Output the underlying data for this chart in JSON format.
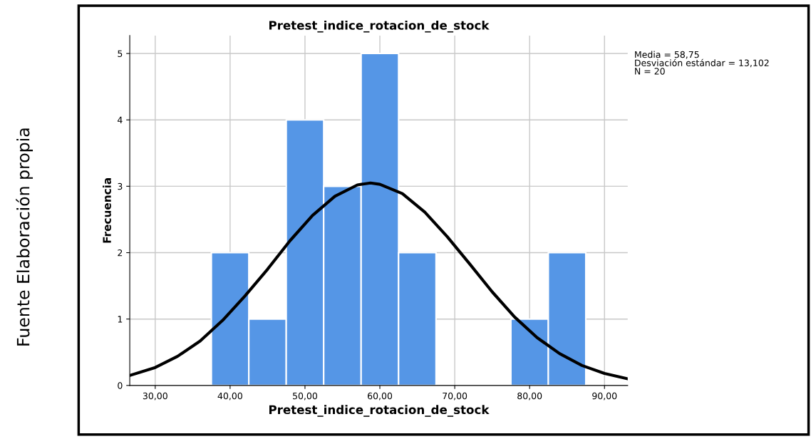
{
  "chart_data": {
    "type": "histogram",
    "title": "Pretest_indice_rotacion_de_stock",
    "xlabel": "Pretest_indice_rotacion_de_stock",
    "ylabel": "Frecuencia",
    "bins": [
      37.5,
      42.5,
      47.5,
      52.5,
      57.5,
      62.5,
      67.5,
      72.5,
      77.5,
      82.5,
      87.5
    ],
    "values": [
      2,
      1,
      4,
      3,
      5,
      2,
      0,
      0,
      1,
      2
    ],
    "color": "#5596e6",
    "series": [
      {
        "type": "line",
        "color": "#000000",
        "x": [
          26.6,
          30,
          33,
          36,
          39,
          42,
          45,
          48,
          51,
          54,
          57,
          58.75,
          60,
          63,
          66,
          69,
          72,
          75,
          78,
          81,
          84,
          87,
          90,
          93.1
        ],
        "values": [
          0.15,
          0.27,
          0.44,
          0.67,
          0.98,
          1.35,
          1.75,
          2.18,
          2.56,
          2.85,
          3.02,
          3.05,
          3.03,
          2.89,
          2.61,
          2.24,
          1.83,
          1.41,
          1.03,
          0.72,
          0.48,
          0.3,
          0.18,
          0.1
        ]
      }
    ],
    "xlim": [
      26.6,
      93.1
    ],
    "xticks": [
      {
        "value": 30,
        "label": "30,00"
      },
      {
        "value": 40,
        "label": "40,00"
      },
      {
        "value": 50,
        "label": "50,00"
      },
      {
        "value": 60,
        "label": "60,00"
      },
      {
        "value": 70,
        "label": "70,00"
      },
      {
        "value": 80,
        "label": "80,00"
      },
      {
        "value": 90,
        "label": "90,00"
      }
    ],
    "ylim": [
      0,
      5.27
    ],
    "yticks": [
      0,
      1,
      2,
      3,
      4,
      5
    ],
    "grid": true,
    "annotations": [
      "Media = 58,75",
      "Desviación estándar = 13,102",
      "N = 20",
      "Fuente Elaboración propia"
    ]
  }
}
